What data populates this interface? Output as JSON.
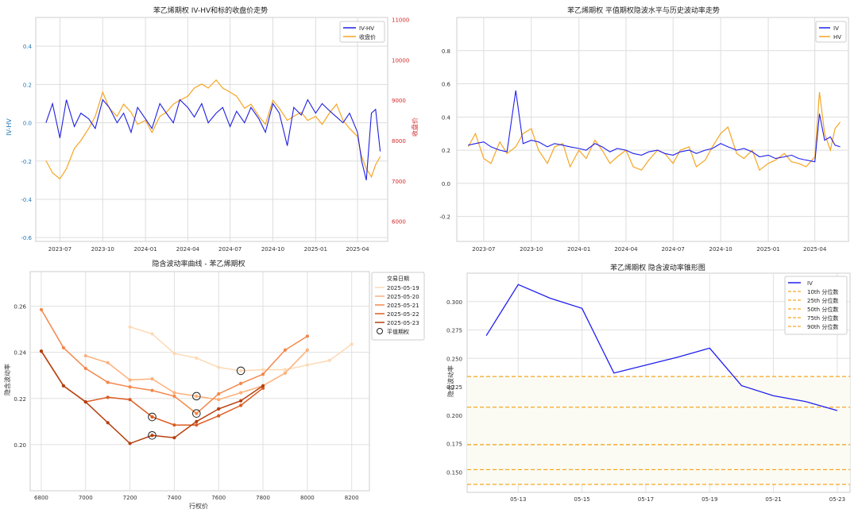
{
  "colors": {
    "iv_hv": "#1f1fe0",
    "close": "#f5a623",
    "iv": "#2020ee",
    "hv": "#f5a623",
    "red_axis": "#d62728",
    "blue_axis": "#1f77b4",
    "dates": [
      "#fdd9b5",
      "#fdb07a",
      "#f4874a",
      "#dc5c22",
      "#b5400f"
    ],
    "quantile": "#f5a623"
  },
  "chart_data": [
    {
      "type": "line",
      "title": "苯乙烯期权 IV-HV和标的收盘价走势",
      "ylabel_left": "IV-HV",
      "ylabel_right": "收盘价",
      "x_ticks": [
        "2023-07",
        "2023-10",
        "2024-01",
        "2024-04",
        "2024-07",
        "2024-10",
        "2025-01",
        "2025-04"
      ],
      "ylim_left": [
        -0.62,
        0.55
      ],
      "yticks_left": [
        "0.4",
        "0.2",
        "0.0",
        "-0.2",
        "-0.4",
        "-0.6"
      ],
      "ylim_right": [
        5500,
        11050
      ],
      "yticks_right": [
        "11000",
        "10000",
        "9000",
        "8000",
        "7000",
        "6000"
      ],
      "series": [
        {
          "name": "IV-HV",
          "axis": "left",
          "x": [
            "2023-06-01",
            "2023-06-15",
            "2023-07-01",
            "2023-07-15",
            "2023-08-01",
            "2023-08-15",
            "2023-09-01",
            "2023-09-15",
            "2023-10-01",
            "2023-10-15",
            "2023-11-01",
            "2023-11-15",
            "2023-12-01",
            "2023-12-15",
            "2024-01-01",
            "2024-01-15",
            "2024-02-01",
            "2024-02-15",
            "2024-03-01",
            "2024-03-15",
            "2024-04-01",
            "2024-04-15",
            "2024-05-01",
            "2024-05-15",
            "2024-06-01",
            "2024-06-15",
            "2024-07-01",
            "2024-07-15",
            "2024-08-01",
            "2024-08-15",
            "2024-09-01",
            "2024-09-15",
            "2024-10-01",
            "2024-10-15",
            "2024-11-01",
            "2024-11-15",
            "2024-12-01",
            "2024-12-15",
            "2025-01-01",
            "2025-01-15",
            "2025-02-01",
            "2025-02-15",
            "2025-03-01",
            "2025-03-15",
            "2025-04-01",
            "2025-04-10",
            "2025-04-20",
            "2025-05-01",
            "2025-05-10",
            "2025-05-20"
          ],
          "values": [
            0.0,
            0.1,
            -0.08,
            0.12,
            -0.02,
            0.05,
            0.02,
            -0.03,
            0.12,
            0.08,
            0.0,
            0.05,
            -0.05,
            0.08,
            0.02,
            -0.03,
            0.1,
            0.05,
            0.0,
            0.12,
            0.08,
            0.03,
            0.1,
            0.0,
            0.05,
            0.08,
            -0.02,
            0.06,
            0.0,
            0.08,
            0.02,
            -0.05,
            0.1,
            0.05,
            -0.12,
            0.08,
            0.04,
            0.12,
            0.05,
            0.1,
            0.06,
            0.03,
            0.0,
            0.05,
            -0.05,
            -0.2,
            -0.3,
            0.05,
            0.07,
            -0.15
          ]
        },
        {
          "name": "收盘价",
          "axis": "right",
          "x": [
            "2023-06-01",
            "2023-06-15",
            "2023-07-01",
            "2023-07-15",
            "2023-08-01",
            "2023-08-15",
            "2023-09-01",
            "2023-09-15",
            "2023-10-01",
            "2023-10-15",
            "2023-11-01",
            "2023-11-15",
            "2023-12-01",
            "2023-12-15",
            "2024-01-01",
            "2024-01-15",
            "2024-02-01",
            "2024-02-15",
            "2024-03-01",
            "2024-03-15",
            "2024-04-01",
            "2024-04-15",
            "2024-05-01",
            "2024-05-15",
            "2024-06-01",
            "2024-06-15",
            "2024-07-01",
            "2024-07-15",
            "2024-08-01",
            "2024-08-15",
            "2024-09-01",
            "2024-09-15",
            "2024-10-01",
            "2024-10-15",
            "2024-11-01",
            "2024-11-15",
            "2024-12-01",
            "2024-12-15",
            "2025-01-01",
            "2025-01-15",
            "2025-02-01",
            "2025-02-15",
            "2025-03-01",
            "2025-03-15",
            "2025-04-01",
            "2025-04-10",
            "2025-04-20",
            "2025-05-01",
            "2025-05-10",
            "2025-05-20"
          ],
          "values": [
            7500,
            7200,
            7050,
            7300,
            7800,
            8000,
            8300,
            8600,
            9200,
            8800,
            8600,
            8900,
            8700,
            8400,
            8500,
            8200,
            8600,
            8700,
            8900,
            9000,
            9100,
            9300,
            9400,
            9300,
            9500,
            9300,
            9200,
            9100,
            8800,
            8900,
            8600,
            8400,
            9000,
            8800,
            8500,
            8600,
            8700,
            8500,
            8600,
            8400,
            8700,
            8900,
            8500,
            8300,
            8100,
            7600,
            7300,
            7100,
            7400,
            7600
          ]
        }
      ]
    },
    {
      "type": "line",
      "title": "苯乙烯期权 平值期权隐波水平与历史波动率走势",
      "x_ticks": [
        "2023-07",
        "2023-10",
        "2024-01",
        "2024-04",
        "2024-07",
        "2024-10",
        "2025-01",
        "2025-04"
      ],
      "ylim": [
        -0.35,
        1.0
      ],
      "yticks": [
        "0.8",
        "0.6",
        "0.4",
        "0.2",
        "0.0",
        "-0.2"
      ],
      "series": [
        {
          "name": "IV",
          "x": [
            "2023-06-01",
            "2023-06-15",
            "2023-07-01",
            "2023-07-15",
            "2023-08-01",
            "2023-08-15",
            "2023-09-01",
            "2023-09-15",
            "2023-10-01",
            "2023-10-15",
            "2023-11-01",
            "2023-11-15",
            "2023-12-01",
            "2023-12-15",
            "2024-01-01",
            "2024-01-15",
            "2024-02-01",
            "2024-02-15",
            "2024-03-01",
            "2024-03-15",
            "2024-04-01",
            "2024-04-15",
            "2024-05-01",
            "2024-05-15",
            "2024-06-01",
            "2024-06-15",
            "2024-07-01",
            "2024-07-15",
            "2024-08-01",
            "2024-08-15",
            "2024-09-01",
            "2024-09-15",
            "2024-10-01",
            "2024-10-15",
            "2024-11-01",
            "2024-11-15",
            "2024-12-01",
            "2024-12-15",
            "2025-01-01",
            "2025-01-15",
            "2025-02-01",
            "2025-02-15",
            "2025-03-01",
            "2025-03-15",
            "2025-04-01",
            "2025-04-10",
            "2025-04-20",
            "2025-05-01",
            "2025-05-10",
            "2025-05-20"
          ],
          "values": [
            0.23,
            0.24,
            0.25,
            0.22,
            0.2,
            0.19,
            0.56,
            0.24,
            0.26,
            0.25,
            0.22,
            0.24,
            0.23,
            0.22,
            0.21,
            0.2,
            0.24,
            0.22,
            0.19,
            0.21,
            0.2,
            0.18,
            0.17,
            0.19,
            0.2,
            0.18,
            0.17,
            0.19,
            0.2,
            0.18,
            0.2,
            0.21,
            0.24,
            0.22,
            0.2,
            0.21,
            0.19,
            0.16,
            0.17,
            0.15,
            0.16,
            0.17,
            0.15,
            0.14,
            0.13,
            0.42,
            0.26,
            0.28,
            0.23,
            0.22
          ]
        },
        {
          "name": "HV",
          "x": [
            "2023-06-01",
            "2023-06-15",
            "2023-07-01",
            "2023-07-15",
            "2023-08-01",
            "2023-08-15",
            "2023-09-01",
            "2023-09-15",
            "2023-10-01",
            "2023-10-15",
            "2023-11-01",
            "2023-11-15",
            "2023-12-01",
            "2023-12-15",
            "2024-01-01",
            "2024-01-15",
            "2024-02-01",
            "2024-02-15",
            "2024-03-01",
            "2024-03-15",
            "2024-04-01",
            "2024-04-15",
            "2024-05-01",
            "2024-05-15",
            "2024-06-01",
            "2024-06-15",
            "2024-07-01",
            "2024-07-15",
            "2024-08-01",
            "2024-08-15",
            "2024-09-01",
            "2024-09-15",
            "2024-10-01",
            "2024-10-15",
            "2024-11-01",
            "2024-11-15",
            "2024-12-01",
            "2024-12-15",
            "2025-01-01",
            "2025-01-15",
            "2025-02-01",
            "2025-02-15",
            "2025-03-01",
            "2025-03-15",
            "2025-04-01",
            "2025-04-10",
            "2025-04-20",
            "2025-05-01",
            "2025-05-10",
            "2025-05-20"
          ],
          "values": [
            0.22,
            0.3,
            0.15,
            0.12,
            0.25,
            0.18,
            0.22,
            0.3,
            0.33,
            0.2,
            0.12,
            0.22,
            0.24,
            0.1,
            0.2,
            0.15,
            0.26,
            0.2,
            0.12,
            0.16,
            0.2,
            0.1,
            0.08,
            0.14,
            0.2,
            0.18,
            0.12,
            0.2,
            0.22,
            0.1,
            0.14,
            0.22,
            0.3,
            0.34,
            0.18,
            0.15,
            0.2,
            0.08,
            0.12,
            0.14,
            0.18,
            0.13,
            0.12,
            0.1,
            0.16,
            0.55,
            0.3,
            0.2,
            0.33,
            0.37
          ]
        }
      ]
    },
    {
      "type": "line",
      "title": "隐含波动率曲线 - 苯乙烯期权",
      "xlabel": "行权价",
      "ylabel": "隐含波动率",
      "xlim": [
        6750,
        8280
      ],
      "ylim": [
        0.18,
        0.275
      ],
      "x_ticks": [
        6800,
        7000,
        7200,
        7400,
        7600,
        7800,
        8000,
        8200
      ],
      "yticks": [
        "0.26",
        "0.24",
        "0.22",
        "0.20"
      ],
      "legend_title": "交易日期",
      "atm_label": "平值期权",
      "series": [
        {
          "name": "2025-05-19",
          "x": [
            7200,
            7300,
            7400,
            7500,
            7600,
            7700,
            7800,
            7900,
            8000,
            8100,
            8200
          ],
          "values": [
            0.251,
            0.248,
            0.2395,
            0.2375,
            0.2335,
            0.232,
            0.2325,
            0.2325,
            0.2345,
            0.2365,
            0.2435
          ],
          "atm": [
            7700,
            0.232
          ]
        },
        {
          "name": "2025-05-20",
          "x": [
            7000,
            7100,
            7200,
            7300,
            7400,
            7500,
            7600,
            7700,
            7800,
            7900,
            8000
          ],
          "values": [
            0.2385,
            0.2355,
            0.228,
            0.2285,
            0.2225,
            0.221,
            0.2195,
            0.2225,
            0.2255,
            0.231,
            0.241
          ],
          "atm": [
            7500,
            0.221
          ]
        },
        {
          "name": "2025-05-21",
          "x": [
            6800,
            6900,
            7000,
            7100,
            7200,
            7300,
            7400,
            7500,
            7600,
            7700,
            7800,
            7900,
            8000
          ],
          "values": [
            0.2585,
            0.242,
            0.233,
            0.227,
            0.225,
            0.2235,
            0.221,
            0.2135,
            0.222,
            0.2265,
            0.2305,
            0.241,
            0.247
          ],
          "atm": [
            7500,
            0.2135
          ]
        },
        {
          "name": "2025-05-22",
          "x": [
            6800,
            6900,
            7000,
            7100,
            7200,
            7300,
            7400,
            7500,
            7600,
            7700,
            7800
          ],
          "values": [
            0.2405,
            0.2255,
            0.2185,
            0.2205,
            0.2195,
            0.212,
            0.2085,
            0.2085,
            0.2125,
            0.217,
            0.2245
          ],
          "atm": [
            7300,
            0.212
          ]
        },
        {
          "name": "2025-05-23",
          "x": [
            6800,
            6900,
            7000,
            7100,
            7200,
            7300,
            7400,
            7500,
            7600,
            7700,
            7800
          ],
          "values": [
            0.2405,
            0.2255,
            0.2185,
            0.2095,
            0.2005,
            0.204,
            0.203,
            0.21,
            0.2155,
            0.219,
            0.2255
          ],
          "atm": [
            7300,
            0.204
          ]
        }
      ]
    },
    {
      "type": "line",
      "title": "苯乙烯期权 隐含波动率锥形图",
      "ylabel": "隐含波动率",
      "xlim": [
        -0.6,
        11.4
      ],
      "x_ticks": [
        "05-13",
        "05-15",
        "05-17",
        "05-19",
        "05-21",
        "05-23"
      ],
      "x_tick_positions": [
        1,
        3,
        5,
        7,
        9,
        11
      ],
      "ylim": [
        0.132,
        0.325
      ],
      "yticks": [
        "0.300",
        "0.275",
        "0.250",
        "0.225",
        "0.200",
        "0.175",
        "0.150"
      ],
      "series": [
        {
          "name": "IV",
          "x": [
            0,
            1,
            2,
            3,
            4,
            5,
            6,
            7,
            8,
            9,
            10,
            11
          ],
          "values": [
            0.27,
            0.315,
            0.303,
            0.294,
            0.237,
            0.244,
            0.251,
            0.259,
            0.226,
            0.217,
            0.212,
            0.204
          ]
        }
      ],
      "quantiles": [
        {
          "name": "10th 分位数",
          "value": 0.139
        },
        {
          "name": "25th 分位数",
          "value": 0.152
        },
        {
          "name": "50th 分位数",
          "value": 0.174
        },
        {
          "name": "75th 分位数",
          "value": 0.207
        },
        {
          "name": "90th 分位数",
          "value": 0.234
        }
      ]
    }
  ]
}
